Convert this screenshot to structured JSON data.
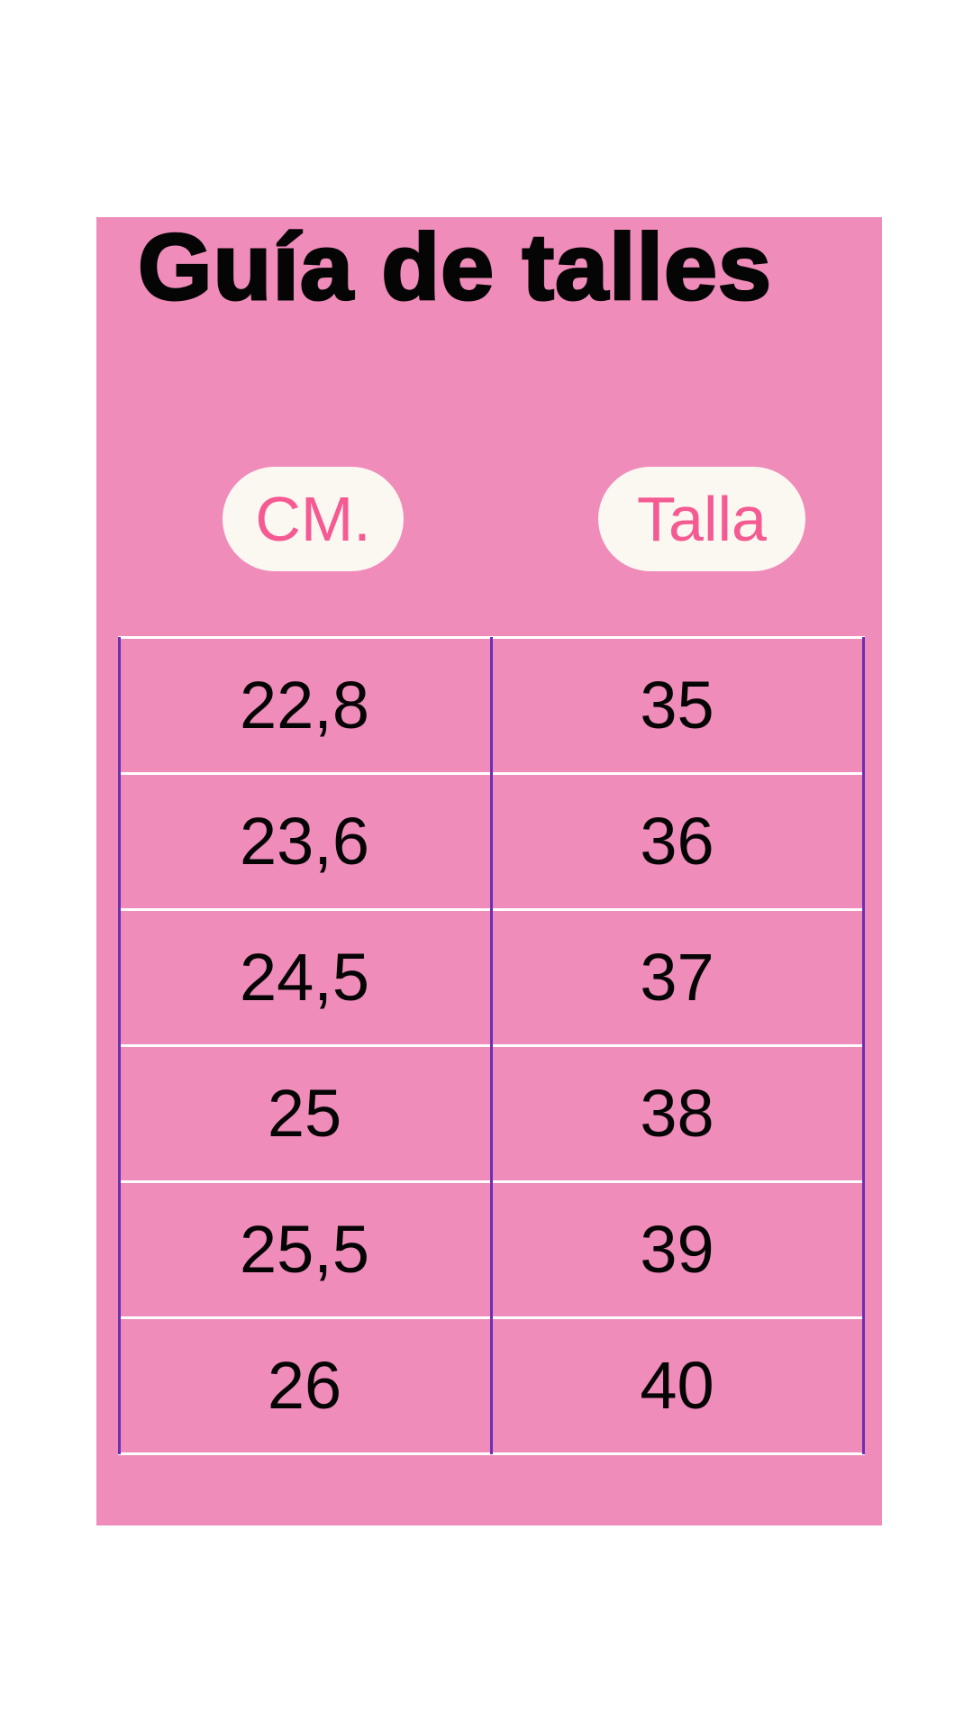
{
  "title": "Guía de talles",
  "headers": [
    "CM.",
    "Talla"
  ],
  "rows": [
    [
      "22,8",
      "35"
    ],
    [
      "23,6",
      "36"
    ],
    [
      "24,5",
      "37"
    ],
    [
      "25",
      "38"
    ],
    [
      "25,5",
      "39"
    ],
    [
      "26",
      "40"
    ]
  ],
  "colors": {
    "background": "#f08cba",
    "pill": "#fbf7f1",
    "pill_text": "#f55a92",
    "grid_horizontal": "#ffffff",
    "grid_vertical": "#6a2fb5"
  }
}
